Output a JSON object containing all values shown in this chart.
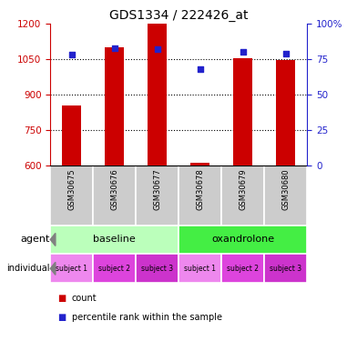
{
  "title": "GDS1334 / 222426_at",
  "samples": [
    "GSM30675",
    "GSM30676",
    "GSM30677",
    "GSM30678",
    "GSM30679",
    "GSM30680"
  ],
  "count_values": [
    855,
    1100,
    1200,
    610,
    1055,
    1045
  ],
  "count_base": 600,
  "percentile_values": [
    78,
    83,
    82,
    68,
    80,
    79
  ],
  "ylim_left": [
    600,
    1200
  ],
  "ylim_right": [
    0,
    100
  ],
  "yticks_left": [
    600,
    750,
    900,
    1050,
    1200
  ],
  "yticks_right": [
    0,
    25,
    50,
    75,
    100
  ],
  "bar_color": "#cc0000",
  "dot_color": "#2222cc",
  "agent_groups": [
    {
      "label": "baseline",
      "start": 0,
      "end": 3,
      "color": "#bbffbb"
    },
    {
      "label": "oxandrolone",
      "start": 3,
      "end": 6,
      "color": "#44ee44"
    }
  ],
  "individual_colors": [
    "#ee88ee",
    "#dd44dd",
    "#cc33cc"
  ],
  "individual_labels": [
    "subject 1",
    "subject 2",
    "subject 3"
  ],
  "gsm_bg_color": "#cccccc",
  "legend_count_color": "#cc0000",
  "legend_dot_color": "#2222cc",
  "left_axis_color": "#cc0000",
  "right_axis_color": "#2222cc",
  "bar_width": 0.45
}
